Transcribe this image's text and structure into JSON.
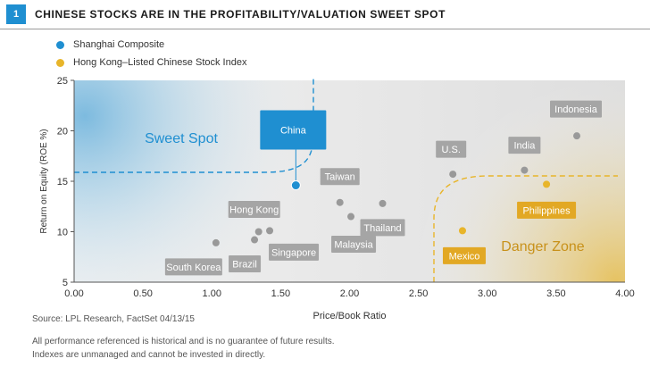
{
  "figure_number": "1",
  "title": "CHINESE STOCKS ARE IN THE PROFITABILITY/VALUATION SWEET SPOT",
  "legend": [
    {
      "label": "Shanghai Composite",
      "color": "#1f8fd1"
    },
    {
      "label": "Hong Kong–Listed Chinese Stock Index",
      "color": "#e8b52a"
    }
  ],
  "chart_data": {
    "type": "scatter",
    "xlabel": "Price/Book Ratio",
    "ylabel": "Return on Equity (ROE %)",
    "xlim": [
      0,
      4
    ],
    "ylim": [
      5,
      25
    ],
    "xticks": [
      "0.00",
      "0.50",
      "1.00",
      "1.50",
      "2.00",
      "2.50",
      "3.00",
      "3.50",
      "4.00"
    ],
    "yticks": [
      "5",
      "10",
      "15",
      "20",
      "25"
    ],
    "zones": {
      "sweet_spot": "Sweet Spot",
      "danger_zone": "Danger Zone"
    },
    "points": [
      {
        "label": "China",
        "x": 1.61,
        "y": 14.6,
        "series": "Shanghai Composite",
        "color": "#1f8fd1",
        "highlight": true
      },
      {
        "label": "Philippines",
        "x": 3.43,
        "y": 14.7,
        "series": "Hong Kong–Listed Chinese Stock Index",
        "color": "#e8b52a"
      },
      {
        "label": "Mexico",
        "x": 2.82,
        "y": 10.1,
        "series": "Hong Kong–Listed Chinese Stock Index",
        "color": "#e8b52a"
      },
      {
        "label": "South Korea",
        "x": 1.03,
        "y": 8.9,
        "color": "#999999"
      },
      {
        "label": "Brazil",
        "x": 1.31,
        "y": 9.2,
        "color": "#999999"
      },
      {
        "label": "Hong Kong",
        "x": 1.34,
        "y": 10.0,
        "color": "#999999"
      },
      {
        "label": "Singapore",
        "x": 1.42,
        "y": 10.1,
        "color": "#999999"
      },
      {
        "label": "Taiwan",
        "x": 1.93,
        "y": 12.9,
        "color": "#999999"
      },
      {
        "label": "Malaysia",
        "x": 2.01,
        "y": 11.5,
        "color": "#999999"
      },
      {
        "label": "Thailand",
        "x": 2.24,
        "y": 12.8,
        "color": "#999999"
      },
      {
        "label": "U.S.",
        "x": 2.75,
        "y": 15.7,
        "color": "#999999"
      },
      {
        "label": "India",
        "x": 3.27,
        "y": 16.1,
        "color": "#999999"
      },
      {
        "label": "Indonesia",
        "x": 3.65,
        "y": 19.5,
        "color": "#999999"
      }
    ]
  },
  "source": "Source: LPL Research, FactSet   04/13/15",
  "disclaimer_1": "All performance referenced is historical and is no guarantee of future results.",
  "disclaimer_2": "Indexes are unmanaged and cannot be invested in directly."
}
